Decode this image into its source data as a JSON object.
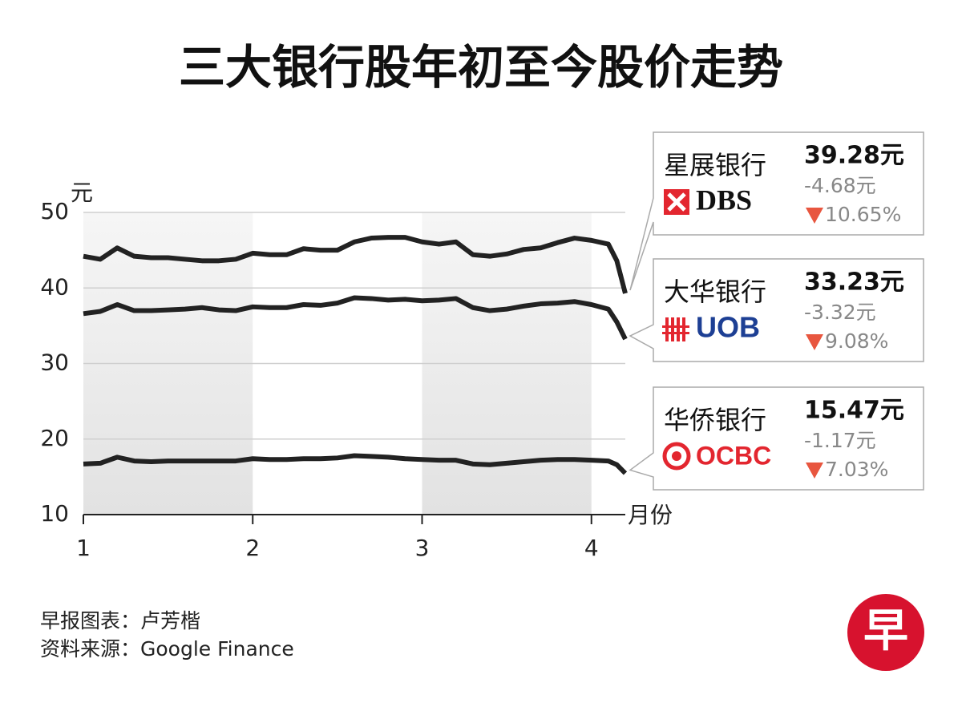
{
  "chart_data": {
    "type": "line",
    "title": "三大银行股年初至今股价走势",
    "y_unit": "元",
    "x_label": "月份",
    "x": [
      1.0,
      1.1,
      1.2,
      1.3,
      1.4,
      1.5,
      1.6,
      1.7,
      1.8,
      1.9,
      2.0,
      2.1,
      2.2,
      2.3,
      2.4,
      2.5,
      2.6,
      2.7,
      2.8,
      2.9,
      3.0,
      3.1,
      3.2,
      3.3,
      3.4,
      3.5,
      3.6,
      3.7,
      3.8,
      3.9,
      4.0,
      4.1,
      4.15,
      4.2
    ],
    "xlim": [
      1,
      4.2
    ],
    "xticks": [
      1,
      2,
      3,
      4
    ],
    "ylim": [
      10,
      50
    ],
    "yticks": [
      10,
      20,
      30,
      40,
      50
    ],
    "grid": true,
    "shaded_months": [
      [
        1,
        2
      ],
      [
        3,
        4
      ]
    ],
    "series": [
      {
        "name": "星展银行",
        "brand": "DBS",
        "color": "#222222",
        "last_label": "39.28元",
        "change_label": "-4.68元",
        "pct_label": "10.65%",
        "values": [
          44.2,
          43.8,
          45.3,
          44.2,
          44.0,
          44.0,
          43.8,
          43.6,
          43.6,
          43.8,
          44.6,
          44.4,
          44.4,
          45.2,
          45.0,
          45.0,
          46.1,
          46.6,
          46.7,
          46.7,
          46.1,
          45.8,
          46.1,
          44.4,
          44.2,
          44.5,
          45.1,
          45.3,
          46.0,
          46.6,
          46.3,
          45.8,
          43.6,
          39.28
        ]
      },
      {
        "name": "大华银行",
        "brand": "UOB",
        "color": "#222222",
        "last_label": "33.23元",
        "change_label": "-3.32元",
        "pct_label": "9.08%",
        "values": [
          36.6,
          36.9,
          37.8,
          37.0,
          37.0,
          37.1,
          37.2,
          37.4,
          37.1,
          37.0,
          37.5,
          37.4,
          37.4,
          37.8,
          37.7,
          38.0,
          38.7,
          38.6,
          38.4,
          38.5,
          38.3,
          38.4,
          38.6,
          37.4,
          37.0,
          37.2,
          37.6,
          37.9,
          38.0,
          38.2,
          37.8,
          37.2,
          35.5,
          33.23
        ]
      },
      {
        "name": "华侨银行",
        "brand": "OCBC",
        "color": "#222222",
        "last_label": "15.47元",
        "change_label": "-1.17元",
        "pct_label": "7.03%",
        "values": [
          16.7,
          16.8,
          17.6,
          17.1,
          17.0,
          17.1,
          17.1,
          17.1,
          17.1,
          17.1,
          17.4,
          17.3,
          17.3,
          17.4,
          17.4,
          17.5,
          17.8,
          17.7,
          17.6,
          17.4,
          17.3,
          17.2,
          17.2,
          16.7,
          16.6,
          16.8,
          17.0,
          17.2,
          17.3,
          17.3,
          17.2,
          17.1,
          16.6,
          15.47
        ]
      }
    ]
  },
  "footer": {
    "credit": "早报图表：卢芳楷",
    "source": "资料来源：Google Finance",
    "logo": "早"
  }
}
